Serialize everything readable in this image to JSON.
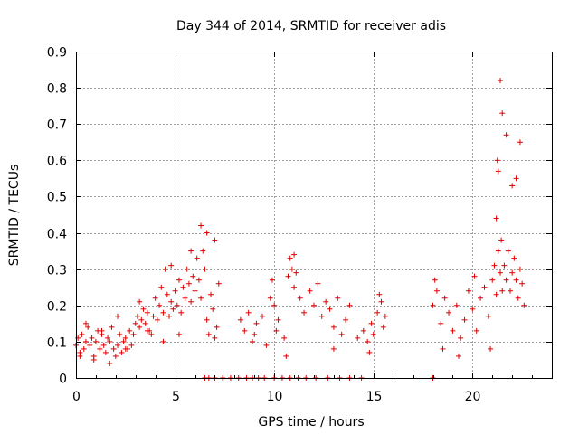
{
  "chart_data": {
    "type": "scatter",
    "title": "Day 344 of 2014, SRMTID for receiver adis",
    "xlabel": "GPS time / hours",
    "ylabel": "SRMTID / TECUs",
    "xlim": [
      0,
      24
    ],
    "ylim": [
      0,
      0.9
    ],
    "xticks": [
      0,
      5,
      10,
      15,
      20
    ],
    "xtick_labels": [
      "0",
      "5",
      "10",
      "15",
      "20"
    ],
    "yticks": [
      0,
      0.1,
      0.2,
      0.3,
      0.4,
      0.5,
      0.6,
      0.7,
      0.8,
      0.9
    ],
    "ytick_labels": [
      "0",
      "0.1",
      "0.2",
      "0.3",
      "0.4",
      "0.5",
      "0.6",
      "0.7",
      "0.8",
      "0.9"
    ],
    "grid": true,
    "marker": "+",
    "colors": {
      "points": "#dd0000",
      "grid": "#a0a0a0",
      "frame": "#000000"
    },
    "series": [
      {
        "name": "SRMTID",
        "x": [
          0.0,
          0.1,
          0.2,
          0.3,
          0.4,
          0.5,
          0.6,
          0.7,
          0.8,
          0.9,
          1.0,
          1.1,
          1.2,
          1.3,
          1.4,
          1.5,
          1.6,
          1.7,
          1.8,
          1.9,
          2.0,
          2.1,
          2.2,
          2.3,
          2.4,
          2.5,
          2.6,
          2.7,
          2.8,
          2.9,
          3.0,
          3.1,
          3.2,
          3.3,
          3.4,
          3.5,
          3.6,
          3.7,
          3.8,
          3.9,
          4.0,
          4.1,
          4.2,
          4.3,
          4.4,
          4.5,
          4.6,
          4.7,
          4.8,
          4.9,
          5.0,
          5.1,
          5.2,
          5.3,
          5.4,
          5.5,
          5.6,
          5.7,
          5.8,
          5.9,
          6.0,
          6.1,
          6.2,
          6.3,
          6.4,
          6.5,
          6.6,
          6.7,
          6.8,
          6.9,
          7.0,
          7.1,
          7.2,
          8.3,
          8.5,
          8.7,
          8.9,
          9.0,
          9.1,
          9.4,
          9.6,
          9.8,
          9.9,
          10.0,
          10.1,
          10.2,
          10.5,
          10.7,
          10.8,
          10.9,
          11.0,
          11.1,
          11.3,
          11.5,
          11.8,
          12.0,
          12.2,
          12.4,
          12.6,
          12.8,
          13.0,
          13.2,
          13.4,
          13.6,
          13.8,
          14.2,
          14.5,
          14.7,
          14.9,
          15.0,
          15.2,
          15.4,
          15.5,
          15.6,
          18.0,
          18.2,
          18.4,
          18.6,
          18.8,
          19.0,
          19.2,
          19.4,
          19.6,
          19.8,
          20.0,
          20.2,
          20.4,
          20.6,
          20.8,
          21.0,
          21.1,
          21.2,
          21.3,
          21.4,
          21.5,
          21.6,
          21.7,
          21.8,
          21.9,
          22.0,
          22.1,
          22.2,
          22.3,
          22.4,
          22.5,
          22.6,
          0.2,
          0.5,
          0.9,
          1.3,
          1.7,
          2.1,
          2.5,
          3.2,
          3.6,
          4.4,
          4.8,
          5.2,
          5.8,
          6.3,
          6.6,
          7.0,
          10.6,
          11.0,
          13.0,
          14.8,
          15.3,
          18.1,
          18.5,
          19.3,
          20.1,
          20.9,
          21.3,
          21.5,
          21.7,
          21.2,
          21.4,
          22.0,
          22.2,
          22.4,
          21.25,
          21.45,
          6.5,
          6.7,
          7.0,
          7.4,
          7.8,
          8.2,
          8.6,
          8.9,
          9.2,
          9.5,
          10.0,
          10.4,
          10.8,
          11.2,
          11.6,
          12.1,
          12.7,
          13.3,
          13.8,
          14.4,
          18.0
        ],
        "y": [
          0.09,
          0.11,
          0.07,
          0.12,
          0.08,
          0.1,
          0.14,
          0.09,
          0.11,
          0.06,
          0.1,
          0.13,
          0.08,
          0.12,
          0.09,
          0.07,
          0.11,
          0.1,
          0.14,
          0.08,
          0.06,
          0.09,
          0.12,
          0.07,
          0.1,
          0.11,
          0.08,
          0.13,
          0.09,
          0.12,
          0.15,
          0.17,
          0.14,
          0.16,
          0.19,
          0.15,
          0.18,
          0.13,
          0.12,
          0.17,
          0.22,
          0.16,
          0.2,
          0.25,
          0.18,
          0.3,
          0.23,
          0.17,
          0.21,
          0.19,
          0.24,
          0.2,
          0.27,
          0.18,
          0.25,
          0.22,
          0.3,
          0.26,
          0.21,
          0.28,
          0.24,
          0.33,
          0.27,
          0.22,
          0.35,
          0.3,
          0.16,
          0.12,
          0.23,
          0.19,
          0.38,
          0.14,
          0.26,
          0.16,
          0.13,
          0.18,
          0.1,
          0.12,
          0.15,
          0.17,
          0.09,
          0.22,
          0.27,
          0.2,
          0.13,
          0.16,
          0.11,
          0.28,
          0.33,
          0.3,
          0.25,
          0.29,
          0.22,
          0.18,
          0.24,
          0.2,
          0.26,
          0.17,
          0.21,
          0.19,
          0.14,
          0.22,
          0.12,
          0.16,
          0.2,
          0.11,
          0.13,
          0.1,
          0.15,
          0.12,
          0.18,
          0.21,
          0.14,
          0.17,
          0.2,
          0.24,
          0.15,
          0.22,
          0.18,
          0.13,
          0.2,
          0.11,
          0.16,
          0.24,
          0.19,
          0.13,
          0.22,
          0.25,
          0.17,
          0.27,
          0.31,
          0.23,
          0.35,
          0.29,
          0.24,
          0.31,
          0.27,
          0.35,
          0.24,
          0.29,
          0.33,
          0.27,
          0.22,
          0.3,
          0.26,
          0.2,
          0.06,
          0.15,
          0.05,
          0.13,
          0.04,
          0.17,
          0.08,
          0.21,
          0.13,
          0.1,
          0.31,
          0.12,
          0.35,
          0.42,
          0.4,
          0.11,
          0.06,
          0.34,
          0.08,
          0.07,
          0.23,
          0.27,
          0.08,
          0.06,
          0.28,
          0.08,
          0.57,
          0.73,
          0.67,
          0.44,
          0.82,
          0.53,
          0.55,
          0.65,
          0.6,
          0.38,
          0.0,
          0.0,
          0.0,
          0.0,
          0.0,
          0.0,
          0.0,
          0.0,
          0.0,
          0.0,
          0.0,
          0.0,
          0.0,
          0.0,
          0.0,
          0.0,
          0.0,
          0.0,
          0.0,
          0.0,
          0.0
        ]
      }
    ]
  }
}
